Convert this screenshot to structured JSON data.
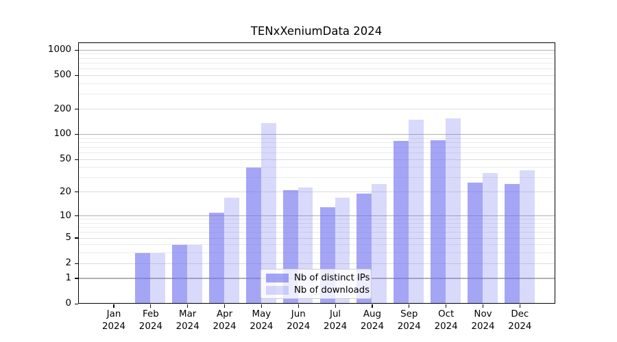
{
  "chart_data": {
    "type": "bar",
    "title": "TENxXeniumData 2024",
    "categories": [
      "Jan",
      "Feb",
      "Mar",
      "Apr",
      "May",
      "Jun",
      "Jul",
      "Aug",
      "Sep",
      "Oct",
      "Nov",
      "Dec"
    ],
    "category_year": "2024",
    "series": [
      {
        "name": "Nb of distinct IPs",
        "color": "rgba(110,110,240,0.62)",
        "values": [
          0,
          3,
          4,
          11,
          40,
          21,
          13,
          19,
          83,
          85,
          26,
          25
        ]
      },
      {
        "name": "Nb of downloads",
        "color": "rgba(110,110,240,0.26)",
        "values": [
          0,
          3,
          4,
          17,
          135,
          23,
          17,
          25,
          150,
          155,
          34,
          37
        ]
      }
    ],
    "xlabel": "",
    "ylabel": "",
    "yscale": "log1p",
    "ylim": [
      0,
      1230
    ],
    "yticks": [
      0,
      1,
      2,
      5,
      10,
      20,
      50,
      100,
      200,
      500,
      1000
    ],
    "grid": {
      "strong_lines": [
        1,
        10,
        100,
        1000
      ],
      "mid_lines": [
        2,
        5,
        20,
        50,
        200,
        500
      ],
      "minor_lines": [
        3,
        4,
        6,
        7,
        8,
        9,
        30,
        40,
        60,
        70,
        80,
        90,
        300,
        400,
        600,
        700,
        800,
        900
      ],
      "strong_color": "#b0b0b0",
      "mid_color": "#dcdcdc",
      "minor_color": "#ebebeb"
    },
    "legend": {
      "position": "bottom-center",
      "entries": [
        "Nb of distinct IPs",
        "Nb of downloads"
      ]
    },
    "axis_color": "#000000",
    "background": "#ffffff"
  }
}
